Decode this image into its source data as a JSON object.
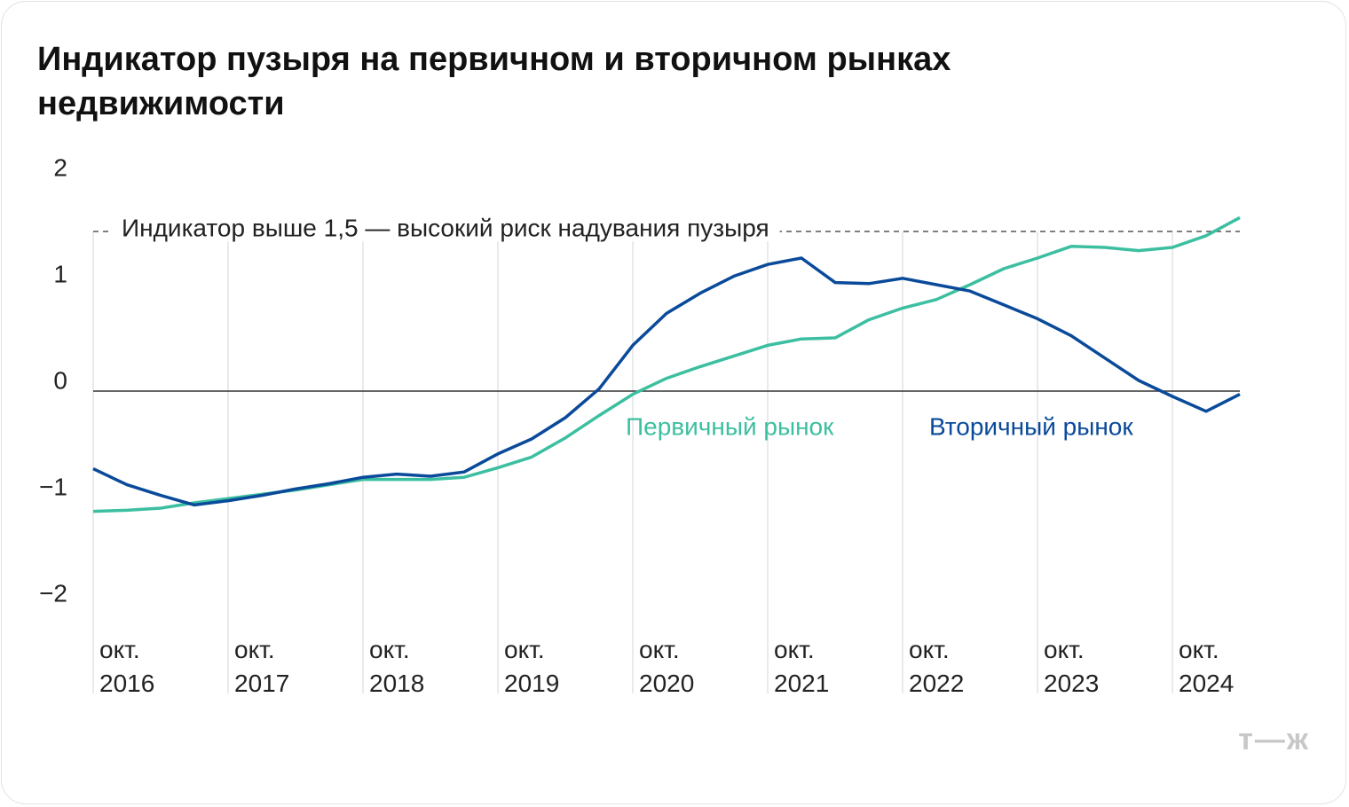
{
  "chart_data": {
    "type": "line",
    "title": "Индикатор пузыря на первичном и вторичном рынках недвижимости",
    "categories": [
      "окт.\n2016",
      null,
      null,
      null,
      "окт.\n2017",
      null,
      null,
      null,
      "окт.\n2018",
      null,
      null,
      null,
      "окт.\n2019",
      null,
      null,
      null,
      "окт.\n2020",
      null,
      null,
      null,
      "окт.\n2021",
      null,
      null,
      null,
      "окт.\n2022",
      null,
      null,
      null,
      "окт.\n2023",
      null,
      null,
      null,
      "окт.\n2024",
      null,
      null
    ],
    "series": [
      {
        "name": "Первичный рынок",
        "color": "#3cbfa0",
        "values": [
          -1.13,
          -1.12,
          -1.1,
          -1.05,
          -1.01,
          -0.97,
          -0.93,
          -0.88,
          -0.83,
          -0.83,
          -0.83,
          -0.81,
          -0.72,
          -0.62,
          -0.44,
          -0.23,
          -0.03,
          0.12,
          0.23,
          0.33,
          0.43,
          0.49,
          0.5,
          0.67,
          0.78,
          0.86,
          1.0,
          1.15,
          1.25,
          1.36,
          1.35,
          1.32,
          1.35,
          1.46,
          1.63
        ]
      },
      {
        "name": "Вторичный рынок",
        "color": "#0a4a9a",
        "values": [
          -0.73,
          -0.88,
          -0.98,
          -1.07,
          -1.03,
          -0.98,
          -0.92,
          -0.87,
          -0.81,
          -0.78,
          -0.8,
          -0.76,
          -0.59,
          -0.45,
          -0.25,
          0.02,
          0.43,
          0.73,
          0.92,
          1.08,
          1.19,
          1.25,
          1.02,
          1.01,
          1.06,
          1.0,
          0.94,
          0.81,
          0.68,
          0.52,
          0.31,
          0.1,
          -0.05,
          -0.19,
          -0.03
        ]
      }
    ],
    "ylim": [
      -2,
      2
    ],
    "yticks": [
      2,
      1,
      0,
      {
        "value": -1,
        "label": "−1"
      },
      {
        "value": -2,
        "label": "−2"
      }
    ],
    "threshold": {
      "value": 1.5,
      "label": "Индикатор выше 1,5 — высокий риск надувания пузыря"
    },
    "grid": true,
    "logo": "т—ж"
  }
}
